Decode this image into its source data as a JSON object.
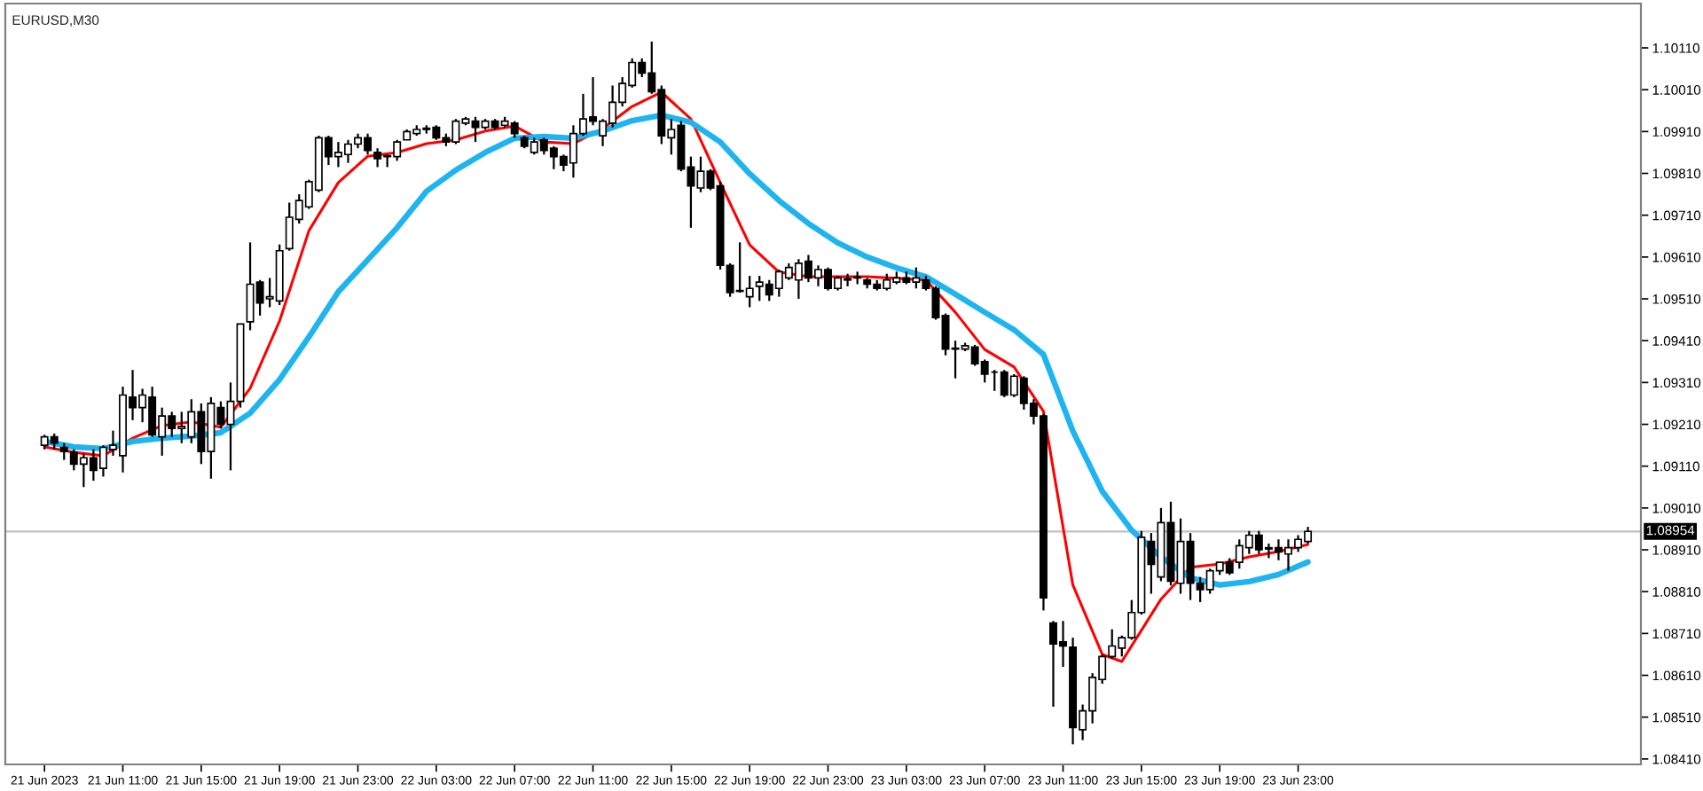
{
  "chart_data": {
    "type": "candlestick",
    "title": "EURUSD,M30",
    "x": [
      "2023-06-21T07:00",
      "2023-06-21T07:30",
      "2023-06-21T08:00",
      "2023-06-21T08:30",
      "2023-06-21T09:00",
      "2023-06-21T09:30",
      "2023-06-21T10:00",
      "2023-06-21T10:30",
      "2023-06-21T11:00",
      "2023-06-21T11:30",
      "2023-06-21T12:00",
      "2023-06-21T12:30",
      "2023-06-21T13:00",
      "2023-06-21T13:30",
      "2023-06-21T14:00",
      "2023-06-21T14:30",
      "2023-06-21T15:00",
      "2023-06-21T15:30",
      "2023-06-21T16:00",
      "2023-06-21T16:30",
      "2023-06-21T17:00",
      "2023-06-21T17:30",
      "2023-06-21T18:00",
      "2023-06-21T18:30",
      "2023-06-21T19:00",
      "2023-06-21T19:30",
      "2023-06-21T20:00",
      "2023-06-21T20:30",
      "2023-06-21T21:00",
      "2023-06-21T21:30",
      "2023-06-21T22:00",
      "2023-06-21T22:30",
      "2023-06-21T23:00",
      "2023-06-21T23:30",
      "2023-06-22T00:00",
      "2023-06-22T00:30",
      "2023-06-22T01:00",
      "2023-06-22T01:30",
      "2023-06-22T02:00",
      "2023-06-22T02:30",
      "2023-06-22T03:00",
      "2023-06-22T03:30",
      "2023-06-22T04:00",
      "2023-06-22T04:30",
      "2023-06-22T05:00",
      "2023-06-22T05:30",
      "2023-06-22T06:00",
      "2023-06-22T06:30",
      "2023-06-22T07:00",
      "2023-06-22T07:30",
      "2023-06-22T08:00",
      "2023-06-22T08:30",
      "2023-06-22T09:00",
      "2023-06-22T09:30",
      "2023-06-22T10:00",
      "2023-06-22T10:30",
      "2023-06-22T11:00",
      "2023-06-22T11:30",
      "2023-06-22T12:00",
      "2023-06-22T12:30",
      "2023-06-22T13:00",
      "2023-06-22T13:30",
      "2023-06-22T14:00",
      "2023-06-22T14:30",
      "2023-06-22T15:00",
      "2023-06-22T15:30",
      "2023-06-22T16:00",
      "2023-06-22T16:30",
      "2023-06-22T17:00",
      "2023-06-22T17:30",
      "2023-06-22T18:00",
      "2023-06-22T18:30",
      "2023-06-22T19:00",
      "2023-06-22T19:30",
      "2023-06-22T20:00",
      "2023-06-22T20:30",
      "2023-06-22T21:00",
      "2023-06-22T21:30",
      "2023-06-22T22:00",
      "2023-06-22T22:30",
      "2023-06-22T23:00",
      "2023-06-22T23:30",
      "2023-06-23T00:00",
      "2023-06-23T00:30",
      "2023-06-23T01:00",
      "2023-06-23T01:30",
      "2023-06-23T02:00",
      "2023-06-23T02:30",
      "2023-06-23T03:00",
      "2023-06-23T03:30",
      "2023-06-23T04:00",
      "2023-06-23T04:30",
      "2023-06-23T05:00",
      "2023-06-23T05:30",
      "2023-06-23T06:00",
      "2023-06-23T06:30",
      "2023-06-23T07:00",
      "2023-06-23T07:30",
      "2023-06-23T08:00",
      "2023-06-23T08:30",
      "2023-06-23T09:00",
      "2023-06-23T09:30",
      "2023-06-23T10:00",
      "2023-06-23T10:30",
      "2023-06-23T11:00",
      "2023-06-23T11:30",
      "2023-06-23T12:00",
      "2023-06-23T12:30",
      "2023-06-23T13:00",
      "2023-06-23T13:30",
      "2023-06-23T14:00",
      "2023-06-23T14:30",
      "2023-06-23T15:00",
      "2023-06-23T15:30",
      "2023-06-23T16:00",
      "2023-06-23T16:30",
      "2023-06-23T17:00",
      "2023-06-23T17:30",
      "2023-06-23T18:00",
      "2023-06-23T18:30",
      "2023-06-23T19:00",
      "2023-06-23T19:30",
      "2023-06-23T20:00",
      "2023-06-23T20:30",
      "2023-06-23T21:00",
      "2023-06-23T21:30",
      "2023-06-23T22:00",
      "2023-06-23T22:30",
      "2023-06-23T23:00",
      "2023-06-23T23:30"
    ],
    "ohlc": [
      [
        1.0916,
        1.09185,
        1.0915,
        1.0918
      ],
      [
        1.0918,
        1.09188,
        1.0915,
        1.09165
      ],
      [
        1.09155,
        1.09165,
        1.09125,
        1.09145
      ],
      [
        1.09143,
        1.0915,
        1.091,
        1.09115
      ],
      [
        1.09115,
        1.0914,
        1.0906,
        1.0913
      ],
      [
        1.0913,
        1.0915,
        1.09075,
        1.091
      ],
      [
        1.09105,
        1.0916,
        1.09085,
        1.09155
      ],
      [
        1.0915,
        1.09195,
        1.09135,
        1.0916
      ],
      [
        1.09135,
        1.093,
        1.09095,
        1.0928
      ],
      [
        1.09275,
        1.0934,
        1.0922,
        1.0925
      ],
      [
        1.0925,
        1.09295,
        1.09215,
        1.0928
      ],
      [
        1.09275,
        1.093,
        1.0918,
        1.09185
      ],
      [
        1.0918,
        1.0925,
        1.09135,
        1.0923
      ],
      [
        1.0923,
        1.0924,
        1.0918,
        1.092
      ],
      [
        1.092,
        1.0924,
        1.09165,
        1.09205
      ],
      [
        1.0918,
        1.0927,
        1.09165,
        1.0924
      ],
      [
        1.0924,
        1.0926,
        1.09115,
        1.09145
      ],
      [
        1.09145,
        1.09275,
        1.0908,
        1.0926
      ],
      [
        1.0925,
        1.09265,
        1.092,
        1.0921
      ],
      [
        1.0921,
        1.0931,
        1.091,
        1.09265
      ],
      [
        1.09265,
        1.0945,
        1.0925,
        1.0945
      ],
      [
        1.09455,
        1.09645,
        1.09435,
        1.09545
      ],
      [
        1.0955,
        1.09555,
        1.0947,
        1.095
      ],
      [
        1.0951,
        1.0956,
        1.0949,
        1.09515
      ],
      [
        1.09505,
        1.0964,
        1.09495,
        1.09625
      ],
      [
        1.0963,
        1.0974,
        1.09625,
        1.09705
      ],
      [
        1.097,
        1.0976,
        1.0969,
        1.09745
      ],
      [
        1.0973,
        1.09795,
        1.09725,
        1.0979
      ],
      [
        1.0977,
        1.099,
        1.09765,
        1.09895
      ],
      [
        1.09895,
        1.099,
        1.0983,
        1.0985
      ],
      [
        1.0985,
        1.09885,
        1.09825,
        1.0986
      ],
      [
        1.09855,
        1.0989,
        1.09835,
        1.0988
      ],
      [
        1.0988,
        1.09905,
        1.0987,
        1.09895
      ],
      [
        1.09895,
        1.09905,
        1.09855,
        1.09865
      ],
      [
        1.0986,
        1.0987,
        1.09825,
        1.09845
      ],
      [
        1.0985,
        1.09855,
        1.09825,
        1.09852
      ],
      [
        1.0985,
        1.0989,
        1.0984,
        1.09885
      ],
      [
        1.0989,
        1.09915,
        1.0989,
        1.0991
      ],
      [
        1.09905,
        1.09925,
        1.099,
        1.09915
      ],
      [
        1.09918,
        1.09925,
        1.09905,
        1.09915
      ],
      [
        1.0992,
        1.09925,
        1.0989,
        1.09895
      ],
      [
        1.09895,
        1.09905,
        1.09875,
        1.09885
      ],
      [
        1.09885,
        1.0994,
        1.0988,
        1.09935
      ],
      [
        1.0993,
        1.09945,
        1.09925,
        1.0994
      ],
      [
        1.09935,
        1.09945,
        1.09885,
        1.0992
      ],
      [
        1.0992,
        1.0994,
        1.09915,
        1.09935
      ],
      [
        1.09935,
        1.0994,
        1.09915,
        1.0992
      ],
      [
        1.09925,
        1.09945,
        1.0992,
        1.09935
      ],
      [
        1.0993,
        1.09935,
        1.09895,
        1.09905
      ],
      [
        1.09895,
        1.099,
        1.0987,
        1.09875
      ],
      [
        1.0986,
        1.09895,
        1.09855,
        1.09885
      ],
      [
        1.0989,
        1.09895,
        1.09855,
        1.09865
      ],
      [
        1.0987,
        1.09875,
        1.0982,
        1.0985
      ],
      [
        1.0985,
        1.09855,
        1.09815,
        1.0983
      ],
      [
        1.09835,
        1.09925,
        1.098,
        1.09905
      ],
      [
        1.09905,
        1.1,
        1.099,
        1.0994
      ],
      [
        1.09945,
        1.1004,
        1.09925,
        1.09935
      ],
      [
        1.099,
        1.0994,
        1.09875,
        1.09935
      ],
      [
        1.0993,
        1.1002,
        1.0992,
        1.0998
      ],
      [
        1.0998,
        1.1004,
        1.0997,
        1.10025
      ],
      [
        1.1002,
        1.10085,
        1.10015,
        1.10075
      ],
      [
        1.10075,
        1.10085,
        1.1004,
        1.1005
      ],
      [
        1.1005,
        1.10125,
        1.1,
        1.10005
      ],
      [
        1.1001,
        1.1002,
        1.0988,
        1.099
      ],
      [
        1.09895,
        1.0994,
        1.09855,
        1.09915
      ],
      [
        1.09925,
        1.09935,
        1.09815,
        1.0982
      ],
      [
        1.09825,
        1.0985,
        1.0968,
        1.0978
      ],
      [
        1.09775,
        1.0985,
        1.09765,
        1.09815
      ],
      [
        1.09815,
        1.0982,
        1.0977,
        1.09775
      ],
      [
        1.0978,
        1.0979,
        1.0958,
        1.0959
      ],
      [
        1.0959,
        1.09595,
        1.09515,
        1.09525
      ],
      [
        1.0953,
        1.09645,
        1.09525,
        1.09528
      ],
      [
        1.09515,
        1.09565,
        1.0949,
        1.09535
      ],
      [
        1.0954,
        1.09565,
        1.09505,
        1.0955
      ],
      [
        1.09545,
        1.09555,
        1.09505,
        1.0952
      ],
      [
        1.09535,
        1.0958,
        1.09515,
        1.09575
      ],
      [
        1.0956,
        1.09595,
        1.09555,
        1.09585
      ],
      [
        1.09555,
        1.09605,
        1.0951,
        1.09595
      ],
      [
        1.096,
        1.09615,
        1.0955,
        1.0956
      ],
      [
        1.0956,
        1.0959,
        1.0954,
        1.0958
      ],
      [
        1.0958,
        1.09585,
        1.0953,
        1.09535
      ],
      [
        1.09535,
        1.09565,
        1.0953,
        1.0956
      ],
      [
        1.09558,
        1.0957,
        1.0954,
        1.09555
      ],
      [
        1.0956,
        1.09575,
        1.09545,
        1.09562
      ],
      [
        1.09555,
        1.0956,
        1.09535,
        1.09545
      ],
      [
        1.09545,
        1.09555,
        1.0953,
        1.09535
      ],
      [
        1.09535,
        1.0957,
        1.0953,
        1.09555
      ],
      [
        1.0955,
        1.09575,
        1.09545,
        1.0956
      ],
      [
        1.0956,
        1.09575,
        1.09545,
        1.0955
      ],
      [
        1.0955,
        1.09585,
        1.09535,
        1.0956
      ],
      [
        1.09555,
        1.09565,
        1.0953,
        1.09535
      ],
      [
        1.09535,
        1.0954,
        1.0946,
        1.09465
      ],
      [
        1.0947,
        1.09475,
        1.09375,
        1.0939
      ],
      [
        1.0939,
        1.0941,
        1.0932,
        1.09392
      ],
      [
        1.0939,
        1.09405,
        1.09385,
        1.09398
      ],
      [
        1.09395,
        1.094,
        1.0935,
        1.09355
      ],
      [
        1.0936,
        1.09365,
        1.0931,
        1.0933
      ],
      [
        1.09335,
        1.0934,
        1.0929,
        1.09335
      ],
      [
        1.09335,
        1.0934,
        1.09275,
        1.0928
      ],
      [
        1.0928,
        1.0933,
        1.09275,
        1.09325
      ],
      [
        1.0932,
        1.09325,
        1.09245,
        1.0926
      ],
      [
        1.0926,
        1.0927,
        1.0921,
        1.0923
      ],
      [
        1.0923,
        1.09235,
        1.08765,
        1.08795
      ],
      [
        1.08735,
        1.0874,
        1.08535,
        1.08685
      ],
      [
        1.0869,
        1.0874,
        1.0863,
        1.0868
      ],
      [
        1.08677,
        1.087,
        1.08445,
        1.08485
      ],
      [
        1.0848,
        1.0854,
        1.08455,
        1.08525
      ],
      [
        1.08525,
        1.08615,
        1.08495,
        1.08605
      ],
      [
        1.086,
        1.0866,
        1.0859,
        1.08655
      ],
      [
        1.08655,
        1.0872,
        1.0865,
        1.0868
      ],
      [
        1.08675,
        1.08705,
        1.08655,
        1.087
      ],
      [
        1.087,
        1.0879,
        1.08695,
        1.0876
      ],
      [
        1.0876,
        1.08955,
        1.08755,
        1.0894
      ],
      [
        1.0893,
        1.0895,
        1.08805,
        1.08875
      ],
      [
        1.08845,
        1.0901,
        1.08835,
        1.08975
      ],
      [
        1.08975,
        1.09025,
        1.08825,
        1.08835
      ],
      [
        1.0883,
        1.08985,
        1.08805,
        1.0893
      ],
      [
        1.0893,
        1.0895,
        1.0879,
        1.0883
      ],
      [
        1.0883,
        1.08845,
        1.08785,
        1.08815
      ],
      [
        1.08815,
        1.08865,
        1.08805,
        1.0886
      ],
      [
        1.0886,
        1.0888,
        1.0885,
        1.0888
      ],
      [
        1.0888,
        1.0889,
        1.0885,
        1.08855
      ],
      [
        1.0888,
        1.08935,
        1.08865,
        1.0892
      ],
      [
        1.08915,
        1.08955,
        1.089,
        1.08945
      ],
      [
        1.08945,
        1.08955,
        1.089,
        1.0891
      ],
      [
        1.08915,
        1.08925,
        1.0889,
        1.08912
      ],
      [
        1.08915,
        1.08935,
        1.08885,
        1.08905
      ],
      [
        1.089,
        1.08935,
        1.0886,
        1.08915
      ],
      [
        1.08915,
        1.08945,
        1.08905,
        1.08935
      ],
      [
        1.0893,
        1.08965,
        1.08925,
        1.08954
      ]
    ],
    "series": [
      {
        "type": "line",
        "color": "#ff0000",
        "x": [
          "2023-06-21T07:00",
          "2023-06-21T08:30",
          "2023-06-21T10:00",
          "2023-06-21T11:30",
          "2023-06-21T13:00",
          "2023-06-21T14:30",
          "2023-06-21T16:00",
          "2023-06-21T17:30",
          "2023-06-21T19:00",
          "2023-06-21T20:30",
          "2023-06-21T22:00",
          "2023-06-21T23:30",
          "2023-06-22T01:00",
          "2023-06-22T02:30",
          "2023-06-22T04:00",
          "2023-06-22T05:30",
          "2023-06-22T07:00",
          "2023-06-22T08:30",
          "2023-06-22T10:00",
          "2023-06-22T11:30",
          "2023-06-22T13:00",
          "2023-06-22T14:30",
          "2023-06-22T16:00",
          "2023-06-22T17:30",
          "2023-06-22T19:00",
          "2023-06-22T20:30",
          "2023-06-22T22:00",
          "2023-06-22T23:30",
          "2023-06-23T01:00",
          "2023-06-23T02:30",
          "2023-06-23T04:00",
          "2023-06-23T05:30",
          "2023-06-23T07:00",
          "2023-06-23T08:30",
          "2023-06-23T10:00",
          "2023-06-23T11:30",
          "2023-06-23T13:00",
          "2023-06-23T14:00",
          "2023-06-23T16:00",
          "2023-06-23T17:30",
          "2023-06-23T19:00",
          "2023-06-23T20:30",
          "2023-06-23T22:00",
          "2023-06-23T23:30"
        ],
        "values": [
          1.09156,
          1.09143,
          1.09135,
          1.09177,
          1.09207,
          1.09216,
          1.09203,
          1.09296,
          1.09457,
          1.09673,
          1.09788,
          1.09851,
          1.0986,
          1.09881,
          1.0989,
          1.09911,
          1.09923,
          1.09885,
          1.09881,
          1.09917,
          1.0997,
          1.10004,
          1.0994,
          1.09788,
          1.09639,
          1.09574,
          1.09563,
          1.09563,
          1.09563,
          1.09559,
          1.09555,
          1.09478,
          1.09389,
          1.09347,
          1.09241,
          1.08826,
          1.0866,
          1.08643,
          1.08792,
          1.08868,
          1.08876,
          1.08893,
          1.08906,
          1.08923
        ]
      },
      {
        "type": "line",
        "color": "#1eb4f0",
        "x": [
          "2023-06-21T07:00",
          "2023-06-21T08:30",
          "2023-06-21T10:00",
          "2023-06-21T11:30",
          "2023-06-21T13:00",
          "2023-06-21T14:30",
          "2023-06-21T16:00",
          "2023-06-21T17:30",
          "2023-06-21T19:00",
          "2023-06-21T20:30",
          "2023-06-21T22:00",
          "2023-06-21T23:30",
          "2023-06-22T01:00",
          "2023-06-22T02:30",
          "2023-06-22T04:00",
          "2023-06-22T05:30",
          "2023-06-22T07:00",
          "2023-06-22T08:30",
          "2023-06-22T10:00",
          "2023-06-22T11:30",
          "2023-06-22T13:00",
          "2023-06-22T14:30",
          "2023-06-22T16:00",
          "2023-06-22T17:30",
          "2023-06-22T19:00",
          "2023-06-22T20:30",
          "2023-06-22T22:00",
          "2023-06-22T23:30",
          "2023-06-23T01:00",
          "2023-06-23T02:30",
          "2023-06-23T04:00",
          "2023-06-23T05:30",
          "2023-06-23T07:00",
          "2023-06-23T08:30",
          "2023-06-23T10:00",
          "2023-06-23T11:30",
          "2023-06-23T13:00",
          "2023-06-23T14:30",
          "2023-06-23T16:00",
          "2023-06-23T17:30",
          "2023-06-23T19:00",
          "2023-06-23T20:30",
          "2023-06-23T22:00",
          "2023-06-23T23:30"
        ],
        "values": [
          1.09169,
          1.09156,
          1.09152,
          1.09169,
          1.09177,
          1.09182,
          1.0919,
          1.09237,
          1.09317,
          1.09419,
          1.09527,
          1.09603,
          1.0968,
          1.09767,
          1.09818,
          1.0986,
          1.09894,
          1.09898,
          1.09894,
          1.09911,
          1.09936,
          1.09949,
          1.09932,
          1.09885,
          1.09809,
          1.09745,
          1.0969,
          1.09644,
          1.0961,
          1.09584,
          1.09563,
          1.09521,
          1.09478,
          1.09436,
          1.09377,
          1.09194,
          1.0905,
          1.08957,
          1.08893,
          1.08843,
          1.08826,
          1.08834,
          1.08851,
          1.08881
        ]
      }
    ],
    "xlim": [
      "2023-06-21T05:00",
      "2023-06-24T16:30"
    ],
    "xticks": [
      {
        "value": "2023-06-21T07:00",
        "label": "21 Jun 2023"
      },
      {
        "value": "2023-06-21T11:00",
        "label": "21 Jun 11:00"
      },
      {
        "value": "2023-06-21T15:00",
        "label": "21 Jun 15:00"
      },
      {
        "value": "2023-06-21T19:00",
        "label": "21 Jun 19:00"
      },
      {
        "value": "2023-06-21T23:00",
        "label": "21 Jun 23:00"
      },
      {
        "value": "2023-06-22T03:00",
        "label": "22 Jun 03:00"
      },
      {
        "value": "2023-06-22T07:00",
        "label": "22 Jun 07:00"
      },
      {
        "value": "2023-06-22T11:00",
        "label": "22 Jun 11:00"
      },
      {
        "value": "2023-06-22T15:00",
        "label": "22 Jun 15:00"
      },
      {
        "value": "2023-06-22T19:00",
        "label": "22 Jun 19:00"
      },
      {
        "value": "2023-06-22T23:00",
        "label": "22 Jun 23:00"
      },
      {
        "value": "2023-06-23T03:00",
        "label": "23 Jun 03:00"
      },
      {
        "value": "2023-06-23T07:00",
        "label": "23 Jun 07:00"
      },
      {
        "value": "2023-06-23T11:00",
        "label": "23 Jun 11:00"
      },
      {
        "value": "2023-06-23T15:00",
        "label": "23 Jun 15:00"
      },
      {
        "value": "2023-06-23T19:00",
        "label": "23 Jun 19:00"
      },
      {
        "value": "2023-06-23T23:00",
        "label": "23 Jun 23:00"
      }
    ],
    "ylim": [
      1.08397,
      1.10216
    ],
    "yticks": [
      {
        "value": 1.1011,
        "label": "1.10110"
      },
      {
        "value": 1.1001,
        "label": "1.10010"
      },
      {
        "value": 1.0991,
        "label": "1.09910"
      },
      {
        "value": 1.0981,
        "label": "1.09810"
      },
      {
        "value": 1.0971,
        "label": "1.09710"
      },
      {
        "value": 1.0961,
        "label": "1.09610"
      },
      {
        "value": 1.0951,
        "label": "1.09510"
      },
      {
        "value": 1.0941,
        "label": "1.09410"
      },
      {
        "value": 1.0931,
        "label": "1.09310"
      },
      {
        "value": 1.0921,
        "label": "1.09210"
      },
      {
        "value": 1.0911,
        "label": "1.09110"
      },
      {
        "value": 1.0901,
        "label": "1.09010"
      },
      {
        "value": 1.0891,
        "label": "1.08910"
      },
      {
        "value": 1.0881,
        "label": "1.08810"
      },
      {
        "value": 1.0871,
        "label": "1.08710"
      },
      {
        "value": 1.0861,
        "label": "1.08610"
      },
      {
        "value": 1.0851,
        "label": "1.08510"
      },
      {
        "value": 1.0841,
        "label": "1.08410"
      }
    ],
    "ref_lines": [
      {
        "axis": "y",
        "value": 1.08954,
        "label": "1.08954",
        "color": "#c0c0c0"
      }
    ]
  }
}
